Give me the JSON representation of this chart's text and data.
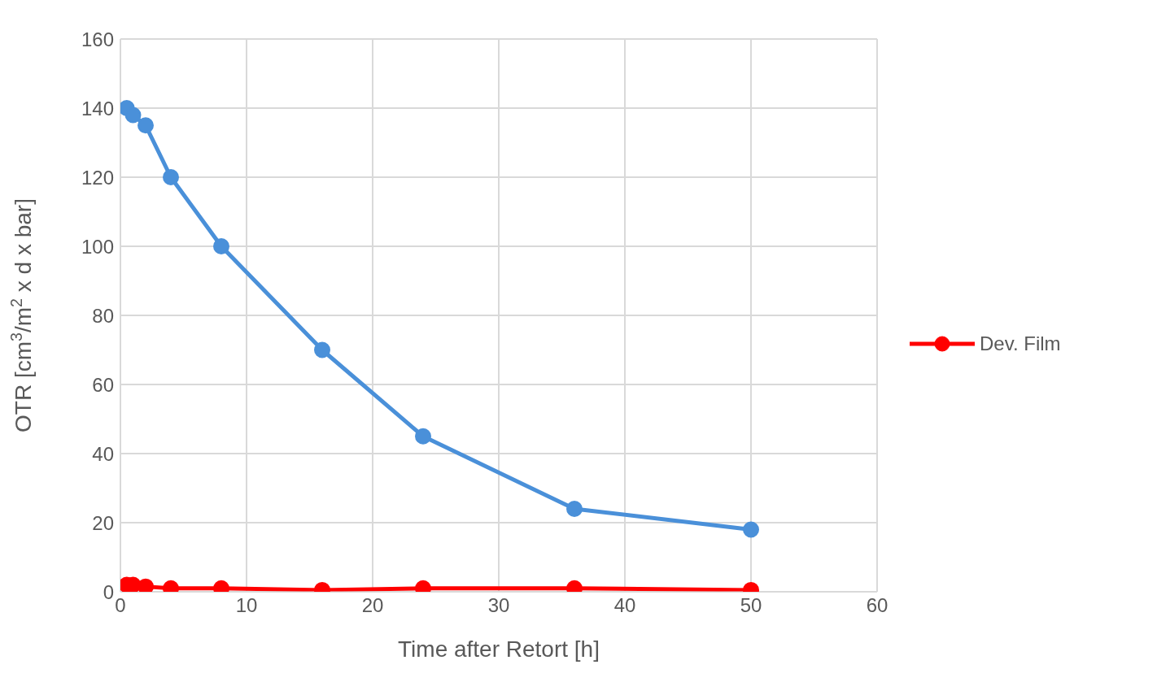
{
  "chart_data": {
    "type": "line",
    "xlabel": "Time after Retort [h]",
    "ylabel": "OTR [cm$^{3}$/m$^{2}$ x d x bar]",
    "x": [
      0.5,
      1,
      2,
      4,
      8,
      16,
      24,
      36,
      50
    ],
    "series": [
      {
        "color": "#4a90d9",
        "values": [
          140,
          138,
          135,
          120,
          100,
          70,
          45,
          24,
          18
        ]
      },
      {
        "name": "Dev. Film",
        "color": "#ff0000",
        "values": [
          2,
          2,
          1.5,
          1,
          1,
          0.5,
          1,
          1,
          0.5
        ]
      }
    ],
    "xlim": [
      0,
      60
    ],
    "xticks": [
      0,
      10,
      20,
      30,
      40,
      50,
      60
    ],
    "ylim": [
      0,
      160
    ],
    "yticks": [
      0,
      20,
      40,
      60,
      80,
      100,
      120,
      140,
      160
    ],
    "grid": true,
    "legend": "right",
    "marker": "circle",
    "line_style": "solid"
  }
}
